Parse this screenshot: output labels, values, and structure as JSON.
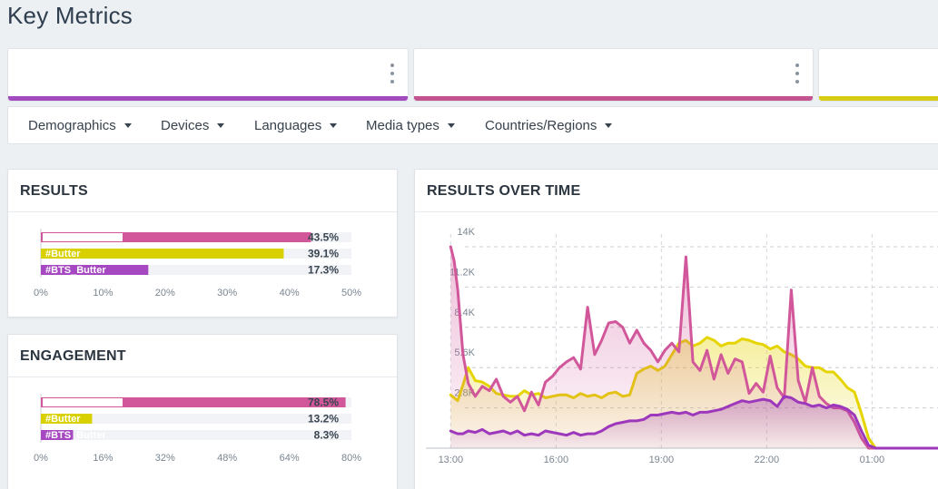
{
  "page": {
    "title": "Key Metrics"
  },
  "metric_cards": [
    {
      "accent": "#a24bbf"
    },
    {
      "accent": "#c3548f"
    },
    {
      "accent": "#d6cc13"
    }
  ],
  "filters": [
    {
      "label": "Demographics"
    },
    {
      "label": "Devices"
    },
    {
      "label": "Languages"
    },
    {
      "label": "Media types"
    },
    {
      "label": "Countries/Regions"
    }
  ],
  "results_panel": {
    "title": "RESULTS"
  },
  "engagement_panel": {
    "title": "ENGAGEMENT"
  },
  "time_panel": {
    "title": "RESULTS OVER TIME"
  },
  "chart_data": [
    {
      "type": "bar",
      "orientation": "horizontal",
      "title": "RESULTS",
      "categories": [
        "",
        "#Butter",
        "#BTS_Butter"
      ],
      "values": [
        43.5,
        39.1,
        17.3
      ],
      "value_labels": [
        "43.5%",
        "39.1%",
        "17.3%"
      ],
      "colors": [
        "#d1579a",
        "#d9d000",
        "#a648c1"
      ],
      "xlim": [
        0,
        50
      ],
      "ticks": [
        "0%",
        "10%",
        "20%",
        "30%",
        "40%",
        "50%"
      ],
      "grid": false
    },
    {
      "type": "bar",
      "orientation": "horizontal",
      "title": "ENGAGEMENT",
      "categories": [
        "",
        "#Butter",
        "#BTS_Butter"
      ],
      "values": [
        78.5,
        13.2,
        8.3
      ],
      "value_labels": [
        "78.5%",
        "13.2%",
        "8.3%"
      ],
      "colors": [
        "#d1579a",
        "#d9d000",
        "#a648c1"
      ],
      "xlim": [
        0,
        80
      ],
      "ticks": [
        "0%",
        "16%",
        "32%",
        "48%",
        "64%",
        "80%"
      ],
      "grid": false
    },
    {
      "type": "area",
      "title": "RESULTS OVER TIME",
      "x": [
        12.5,
        12.7,
        12.9,
        13,
        13.1,
        13.2,
        13.35,
        13.5,
        13.7,
        13.9,
        14.1,
        14.3,
        14.5,
        14.7,
        14.9,
        15.1,
        15.3,
        15.5,
        15.7,
        15.9,
        16.1,
        16.3,
        16.5,
        16.7,
        16.9,
        17.1,
        17.3,
        17.5,
        17.7,
        17.9,
        18.1,
        18.3,
        18.5,
        18.7,
        18.9,
        19.1,
        19.3,
        19.5,
        19.7,
        19.9,
        20.1,
        20.3,
        20.5,
        20.7,
        20.9,
        21.1,
        21.3,
        21.5,
        21.7,
        21.9,
        22.1,
        22.3,
        22.5,
        22.7,
        22.9,
        23.1,
        23.3,
        23.5,
        23.7,
        23.9,
        24.1,
        24.3,
        24.5,
        24.7,
        24.9,
        25.1,
        25.3,
        25.5,
        25.7,
        25.9,
        26.1,
        26.3,
        26.5,
        27.0,
        27.5
      ],
      "series": [
        {
          "color": "#d1579a",
          "values": [
            0,
            0,
            0,
            14000,
            13000,
            11000,
            6500,
            4500,
            3600,
            4300,
            4000,
            4800,
            3600,
            3200,
            3600,
            2600,
            3900,
            3000,
            4600,
            5000,
            5600,
            6000,
            6300,
            5500,
            9800,
            6500,
            7500,
            8700,
            8800,
            8400,
            7300,
            8200,
            7300,
            6800,
            6000,
            6800,
            7300,
            6700,
            13300,
            6000,
            5400,
            6800,
            4800,
            6500,
            5200,
            6200,
            6000,
            3800,
            4500,
            3900,
            6400,
            4200,
            3500,
            11000,
            4700,
            3200,
            5600,
            3600,
            3100,
            2800,
            2800,
            2600,
            1800,
            700,
            0,
            0,
            0,
            0,
            0,
            0,
            0,
            0,
            0,
            0,
            0
          ]
        },
        {
          "color": "#e5d400",
          "values": [
            0,
            0,
            0,
            3700,
            3500,
            3300,
            4400,
            5600,
            4700,
            4600,
            4300,
            3800,
            3700,
            3600,
            3600,
            4000,
            3700,
            3800,
            3500,
            3600,
            3700,
            3700,
            3500,
            3800,
            3600,
            3700,
            3500,
            3800,
            3900,
            3600,
            3700,
            5200,
            5500,
            5700,
            5400,
            5700,
            6500,
            7300,
            7500,
            7100,
            7300,
            7700,
            7500,
            7100,
            7300,
            7300,
            7600,
            7500,
            7300,
            7200,
            6900,
            7100,
            6700,
            6500,
            6200,
            5700,
            5600,
            5600,
            5300,
            5300,
            4800,
            4200,
            3900,
            2400,
            700,
            0,
            0,
            0,
            0,
            0,
            0,
            0,
            0,
            0,
            0
          ]
        },
        {
          "color": "#9d38bd",
          "values": [
            0,
            0,
            0,
            1200,
            1100,
            1000,
            1000,
            1200,
            1100,
            1300,
            1000,
            1100,
            1200,
            1000,
            1200,
            900,
            1000,
            900,
            1200,
            1100,
            1000,
            900,
            1100,
            900,
            1000,
            1000,
            1200,
            1500,
            1700,
            1800,
            1900,
            1900,
            2000,
            2300,
            2300,
            2400,
            2500,
            2400,
            2500,
            2300,
            2500,
            2500,
            2600,
            2700,
            2900,
            3100,
            3300,
            3200,
            3300,
            3400,
            3300,
            2900,
            3600,
            3500,
            3200,
            3100,
            2900,
            3000,
            2800,
            3000,
            2900,
            2700,
            2300,
            1200,
            200,
            0,
            0,
            0,
            0,
            0,
            0,
            0,
            0,
            0,
            0
          ]
        }
      ],
      "y_ticks": [
        {
          "value": 2800,
          "label": "2.8K"
        },
        {
          "value": 5600,
          "label": "5.6K"
        },
        {
          "value": 8400,
          "label": "8.4K"
        },
        {
          "value": 11200,
          "label": "11.2K"
        },
        {
          "value": 14000,
          "label": "14K"
        }
      ],
      "x_ticks": [
        {
          "value": 13,
          "label": "13:00"
        },
        {
          "value": 16,
          "label": "16:00"
        },
        {
          "value": 19,
          "label": "19:00"
        },
        {
          "value": 22,
          "label": "22:00"
        },
        {
          "value": 25,
          "label": "01:00"
        }
      ],
      "ylim": [
        0,
        14000
      ],
      "grid": true
    }
  ]
}
